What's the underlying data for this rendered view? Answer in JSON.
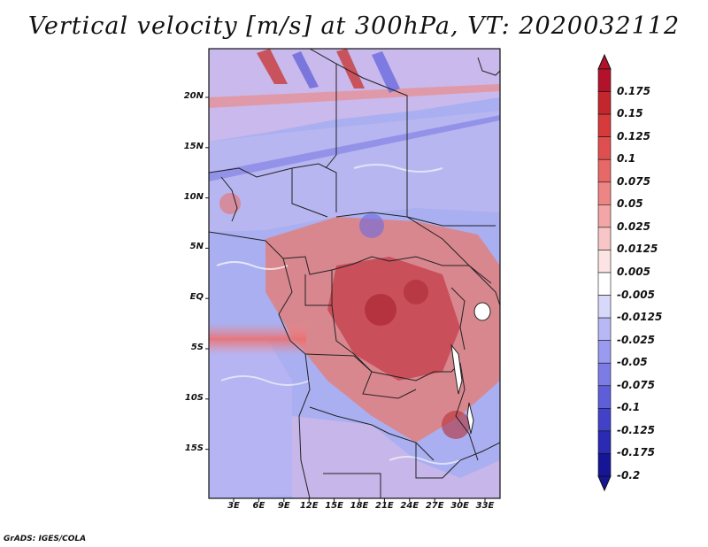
{
  "title": "Vertical velocity [m/s] at 300hPa, VT: 2020032112",
  "credit": "GrADS: IGES/COLA",
  "lat_labels": [
    "20N",
    "15N",
    "10N",
    "5N",
    "EQ",
    "5S",
    "10S",
    "15S"
  ],
  "lon_labels": [
    "3E",
    "6E",
    "9E",
    "12E",
    "15E",
    "18E",
    "21E",
    "24E",
    "27E",
    "30E",
    "33E"
  ],
  "colorbar": {
    "labels": [
      "0.175",
      "0.15",
      "0.125",
      "0.1",
      "0.075",
      "0.05",
      "0.025",
      "0.0125",
      "0.005",
      "-0.005",
      "-0.0125",
      "-0.025",
      "-0.05",
      "-0.075",
      "-0.1",
      "-0.125",
      "-0.175",
      "-0.2"
    ],
    "colors": [
      "#b3122a",
      "#c4262d",
      "#d63a3a",
      "#e04f4f",
      "#e86868",
      "#ee8585",
      "#f4a6a6",
      "#f8c6c6",
      "#fde4e4",
      "#ffffff",
      "#d8d8fb",
      "#b8b8f6",
      "#9a9af0",
      "#7c7ce6",
      "#5e5ed9",
      "#4242c8",
      "#2a2ab3",
      "#151595"
    ]
  }
}
